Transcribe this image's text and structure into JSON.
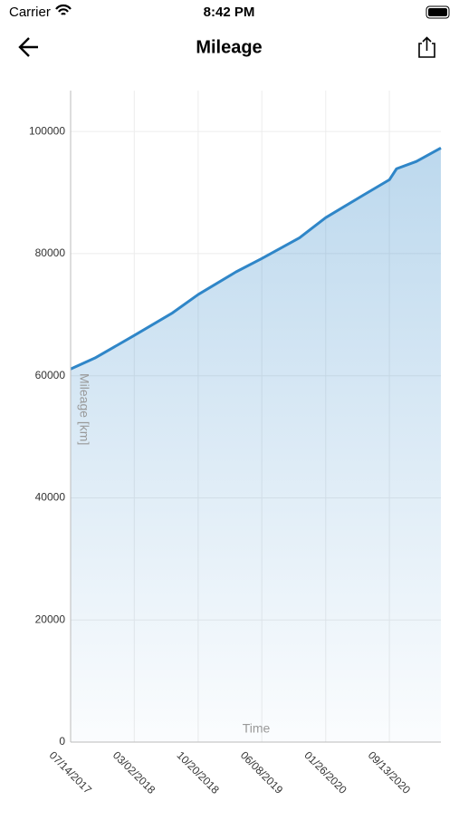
{
  "status_bar": {
    "carrier": "Carrier",
    "time": "8:42 PM"
  },
  "nav": {
    "title": "Mileage"
  },
  "chart_data": {
    "type": "area",
    "x_label": "Time",
    "y_label": "Mileage [km]",
    "x": [
      "07/14/2017",
      "10/10/2017",
      "03/02/2018",
      "07/19/2018",
      "10/20/2018",
      "03/06/2019",
      "06/08/2019",
      "10/23/2019",
      "01/26/2020",
      "06/11/2020",
      "09/13/2020",
      "10/09/2020",
      "12/20/2020",
      "03/19/2021"
    ],
    "series": [
      {
        "name": "Mileage",
        "color": "#2f86c8",
        "values": [
          61100,
          62900,
          66600,
          70300,
          73300,
          77000,
          79200,
          82600,
          85900,
          89600,
          92100,
          93900,
          95100,
          97300
        ]
      }
    ],
    "xlim": [
      "07/14/2017",
      "03/19/2021"
    ],
    "xticks": [
      "07/14/2017",
      "03/02/2018",
      "10/20/2018",
      "06/08/2019",
      "01/26/2020",
      "09/13/2020"
    ],
    "ylim": [
      0,
      106700
    ],
    "yticks": [
      0,
      20000,
      40000,
      60000,
      80000,
      100000
    ],
    "grid": true
  }
}
